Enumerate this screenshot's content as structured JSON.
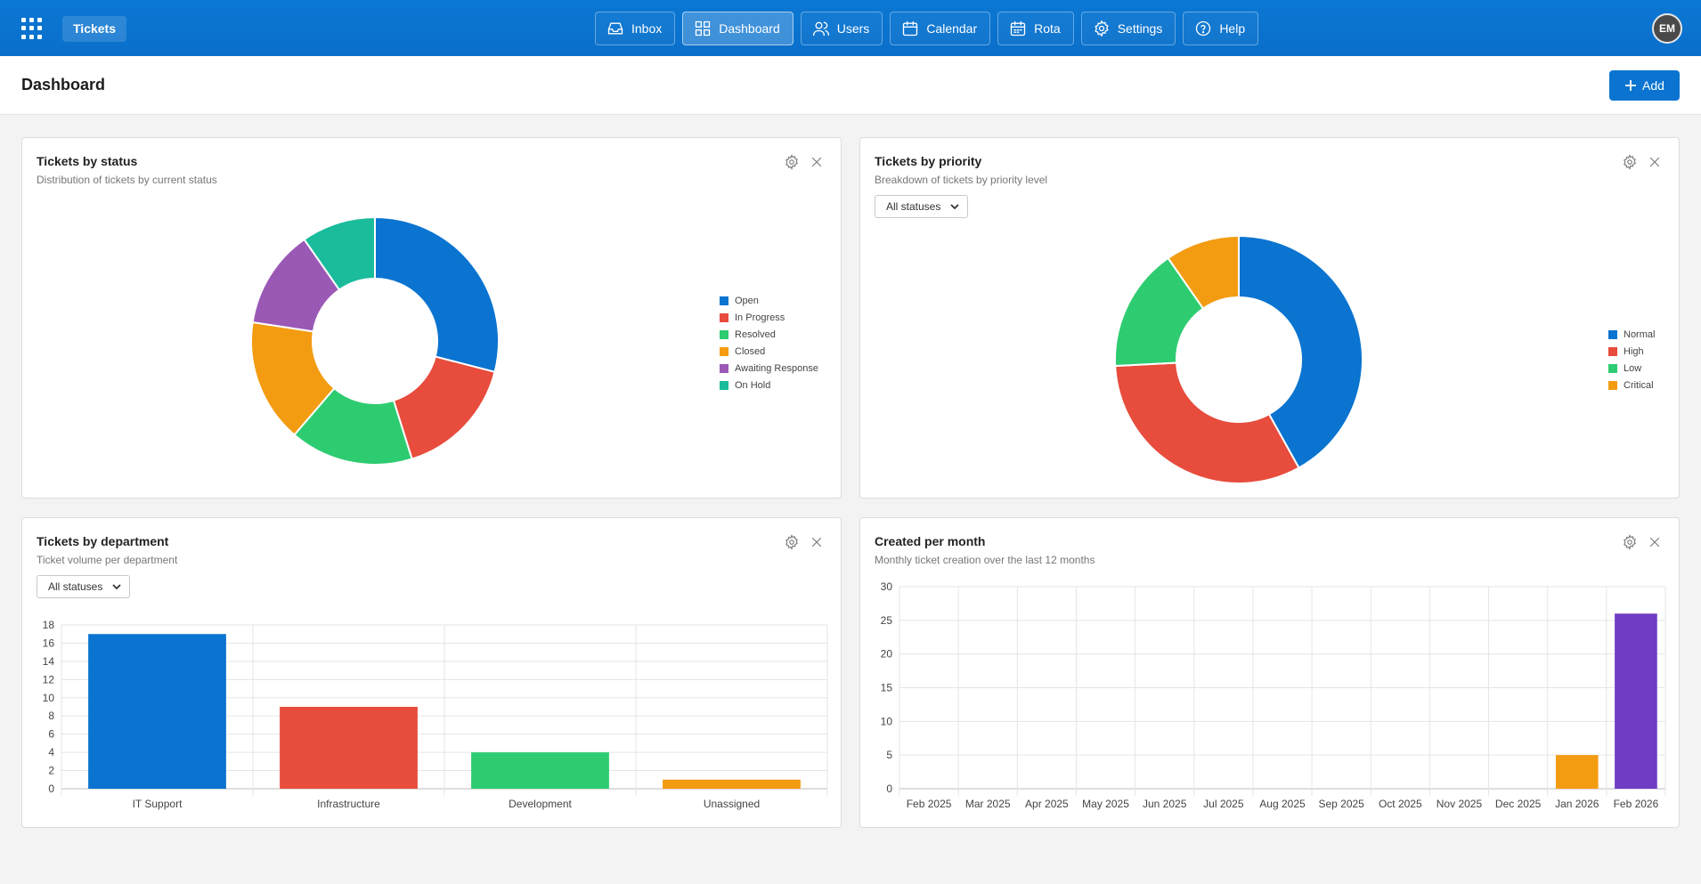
{
  "app": {
    "brand": "Tickets",
    "user_initials": "EM"
  },
  "nav": [
    {
      "id": "inbox",
      "label": "Inbox",
      "icon": "inbox-icon",
      "active": false
    },
    {
      "id": "dashboard",
      "label": "Dashboard",
      "icon": "dashboard-icon",
      "active": true
    },
    {
      "id": "users",
      "label": "Users",
      "icon": "users-icon",
      "active": false
    },
    {
      "id": "calendar",
      "label": "Calendar",
      "icon": "calendar-icon",
      "active": false
    },
    {
      "id": "rota",
      "label": "Rota",
      "icon": "rota-icon",
      "active": false
    },
    {
      "id": "settings",
      "label": "Settings",
      "icon": "gear-icon",
      "active": false
    },
    {
      "id": "help",
      "label": "Help",
      "icon": "help-icon",
      "active": false
    }
  ],
  "header": {
    "title": "Dashboard",
    "add_label": "Add"
  },
  "colors": {
    "accent": "#0a74d0"
  },
  "cards": {
    "status": {
      "title": "Tickets by status",
      "subtitle": "Distribution of tickets by current status"
    },
    "priority": {
      "title": "Tickets by priority",
      "subtitle": "Breakdown of tickets by priority level",
      "filter": "All statuses"
    },
    "department": {
      "title": "Tickets by department",
      "subtitle": "Ticket volume per department",
      "filter": "All statuses"
    },
    "monthly": {
      "title": "Created per month",
      "subtitle": "Monthly ticket creation over the last 12 months"
    }
  },
  "chart_data": [
    {
      "id": "status",
      "type": "pie",
      "donut": true,
      "legend": "right",
      "categories": [
        "Open",
        "In Progress",
        "Resolved",
        "Closed",
        "Awaiting Response",
        "On Hold"
      ],
      "values": [
        9,
        5,
        5,
        5,
        4,
        3
      ],
      "colors": [
        "#0a74d0",
        "#e74c3c",
        "#2ecc71",
        "#f39c12",
        "#9b59b6",
        "#1abc9c"
      ]
    },
    {
      "id": "priority",
      "type": "pie",
      "donut": true,
      "legend": "right",
      "categories": [
        "Normal",
        "High",
        "Low",
        "Critical"
      ],
      "values": [
        13,
        10,
        5,
        3
      ],
      "colors": [
        "#0a74d0",
        "#e74c3c",
        "#2ecc71",
        "#f39c12"
      ]
    },
    {
      "id": "department",
      "type": "bar",
      "categories": [
        "IT Support",
        "Infrastructure",
        "Development",
        "Unassigned"
      ],
      "values": [
        17,
        9,
        4,
        1
      ],
      "colors": [
        "#0a74d0",
        "#e74c3c",
        "#2ecc71",
        "#f39c12"
      ],
      "ylim": [
        0,
        18
      ],
      "yticks": [
        0,
        2,
        4,
        6,
        8,
        10,
        12,
        14,
        16,
        18
      ],
      "grid": true
    },
    {
      "id": "monthly",
      "type": "bar",
      "categories": [
        "Feb 2025",
        "Mar 2025",
        "Apr 2025",
        "May 2025",
        "Jun 2025",
        "Jul 2025",
        "Aug 2025",
        "Sep 2025",
        "Oct 2025",
        "Nov 2025",
        "Dec 2025",
        "Jan 2026",
        "Feb 2026"
      ],
      "values": [
        0,
        0,
        0,
        0,
        0,
        0,
        0,
        0,
        0,
        0,
        0,
        5,
        26
      ],
      "colors": [
        "#0a74d0",
        "#0a74d0",
        "#0a74d0",
        "#0a74d0",
        "#0a74d0",
        "#0a74d0",
        "#0a74d0",
        "#0a74d0",
        "#0a74d0",
        "#0a74d0",
        "#0a74d0",
        "#f39c12",
        "#6f3cc3"
      ],
      "ylim": [
        0,
        30
      ],
      "yticks": [
        0,
        5,
        10,
        15,
        20,
        25,
        30
      ],
      "grid": true
    }
  ]
}
